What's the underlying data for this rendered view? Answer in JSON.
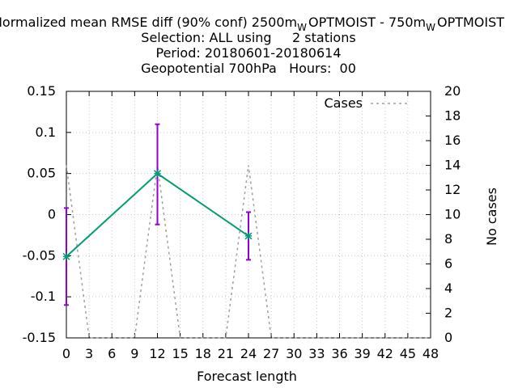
{
  "chart_data": {
    "type": "line",
    "title": {
      "line1_part1": "Normalized mean RMSE diff (90% conf) 2500m",
      "line1_sub1": "W",
      "line1_part2": "OPTMOIST - 750m",
      "line1_sub2": "W",
      "line1_part3": "OPTMOIST",
      "line2": "Selection: ALL using     2 stations",
      "line3": "Period: 20180601-20180614",
      "line4": "Geopotential 700hPa   Hours:  00"
    },
    "xlabel": "Forecast length",
    "ylabel": "",
    "y2label": "No cases",
    "xlim": [
      0,
      48
    ],
    "ylim": [
      -0.15,
      0.15
    ],
    "y2lim": [
      0,
      20
    ],
    "xticks": [
      "0",
      "3",
      "6",
      "9",
      "12",
      "15",
      "18",
      "21",
      "24",
      "27",
      "30",
      "33",
      "36",
      "39",
      "42",
      "45",
      "48"
    ],
    "yticks": [
      "0.15",
      "0.1",
      "0.05",
      "0",
      "-0.05",
      "-0.1",
      "-0.15"
    ],
    "y2ticks": [
      "20",
      "18",
      "16",
      "14",
      "12",
      "10",
      "8",
      "6",
      "4",
      "2",
      "0"
    ],
    "grid": true,
    "legend_position": "top-right",
    "series": [
      {
        "name": "",
        "kind": "line-with-errorbars",
        "color": "#009e73",
        "errorbar_color": "#9400d3",
        "x": [
          0,
          12,
          24
        ],
        "y": [
          -0.051,
          0.05,
          -0.026
        ],
        "err_low": [
          -0.11,
          -0.012,
          -0.055
        ],
        "err_high": [
          0.008,
          0.11,
          0.003
        ]
      },
      {
        "name": "Cases",
        "kind": "dashed-line",
        "axis": "y2",
        "color": "#a0a0a0",
        "x": [
          0,
          3,
          6,
          9,
          12,
          15,
          18,
          21,
          24,
          27,
          30,
          33,
          36,
          39,
          42,
          45,
          48
        ],
        "y": [
          14,
          0,
          0,
          0,
          14,
          0,
          0,
          0,
          14,
          0,
          0,
          0,
          0,
          0,
          0,
          0,
          0
        ]
      }
    ]
  }
}
